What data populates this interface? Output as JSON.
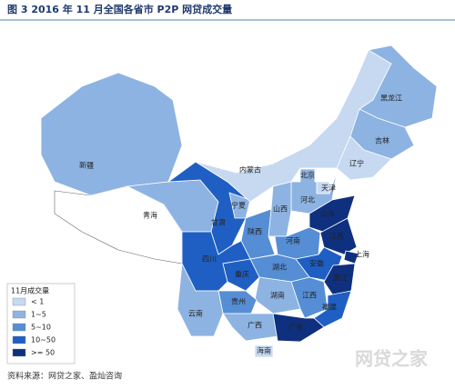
{
  "title": "图 3   2016 年 11 月全国各省市 P2P 网贷成交量",
  "legend": {
    "title": "11月成交量",
    "items": [
      {
        "label": "< 1",
        "color": "#c6d9f1"
      },
      {
        "label": "1~5",
        "color": "#8db3e2"
      },
      {
        "label": "5~10",
        "color": "#558ed5"
      },
      {
        "label": "10~50",
        "color": "#1f5fc4"
      },
      {
        "label": ">= 50",
        "color": "#0f307e"
      }
    ]
  },
  "regions": [
    {
      "name": "新疆",
      "class": 1
    },
    {
      "name": "青海",
      "class": 1
    },
    {
      "name": "甘肃",
      "class": 3
    },
    {
      "name": "宁夏",
      "class": 1
    },
    {
      "name": "内蒙古",
      "class": 0
    },
    {
      "name": "黑龙江",
      "class": 1
    },
    {
      "name": "吉林",
      "class": 1
    },
    {
      "name": "辽宁",
      "class": 0
    },
    {
      "name": "北京",
      "class": 3
    },
    {
      "name": "天津",
      "class": 0
    },
    {
      "name": "河北",
      "class": 1
    },
    {
      "name": "山西",
      "class": 1
    },
    {
      "name": "陕西",
      "class": 2
    },
    {
      "name": "山东",
      "class": 4
    },
    {
      "name": "河南",
      "class": 2
    },
    {
      "name": "江苏",
      "class": 4
    },
    {
      "name": "安徽",
      "class": 3
    },
    {
      "name": "上海",
      "class": 4
    },
    {
      "name": "浙江",
      "class": 4
    },
    {
      "name": "湖北",
      "class": 2
    },
    {
      "name": "四川",
      "class": 3
    },
    {
      "name": "重庆",
      "class": 3
    },
    {
      "name": "江西",
      "class": 2
    },
    {
      "name": "湖南",
      "class": 1
    },
    {
      "name": "贵州",
      "class": 2
    },
    {
      "name": "福建",
      "class": 3
    },
    {
      "name": "云南",
      "class": 1
    },
    {
      "name": "广西",
      "class": 1
    },
    {
      "name": "广东",
      "class": 4
    },
    {
      "name": "海南",
      "class": 0
    }
  ],
  "source": "资料来源：网贷之家、盈灿咨询",
  "watermark": "网贷之家"
}
